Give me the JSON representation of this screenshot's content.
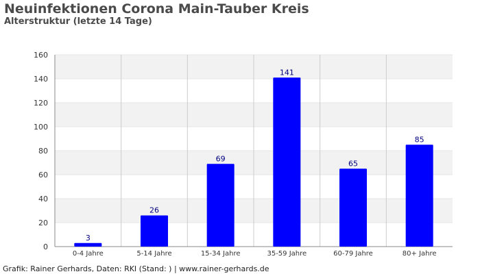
{
  "header": {
    "title": "Neuinfektionen Corona Main-Tauber Kreis",
    "subtitle": "Alterstruktur (letzte 14 Tage)"
  },
  "footer": {
    "credit": "Grafik: Rainer Gerhards, Daten: RKI (Stand: ) | www.rainer-gerhards.de"
  },
  "colors": {
    "bar": "#0000ff",
    "bar_label": "#000080",
    "band": "#f2f2f2",
    "grid": "#cccccc",
    "axis": "#888888",
    "tick_text": "#333333"
  },
  "chart_data": {
    "type": "bar",
    "title": "Neuinfektionen Corona Main-Tauber Kreis",
    "subtitle": "Alterstruktur (letzte 14 Tage)",
    "categories": [
      "0-4 Jahre",
      "5-14 Jahre",
      "15-34 Jahre",
      "35-59 Jahre",
      "60-79 Jahre",
      "80+ Jahre"
    ],
    "values": [
      3,
      26,
      69,
      141,
      65,
      85
    ],
    "data_labels": [
      "3",
      "26",
      "69",
      "141",
      "65",
      "85"
    ],
    "yticks": [
      "0",
      "20",
      "40",
      "60",
      "80",
      "100",
      "120",
      "140",
      "160"
    ],
    "ylim": [
      0,
      160
    ],
    "xlabel": "",
    "ylabel": "",
    "grid": true,
    "legend": "none"
  }
}
